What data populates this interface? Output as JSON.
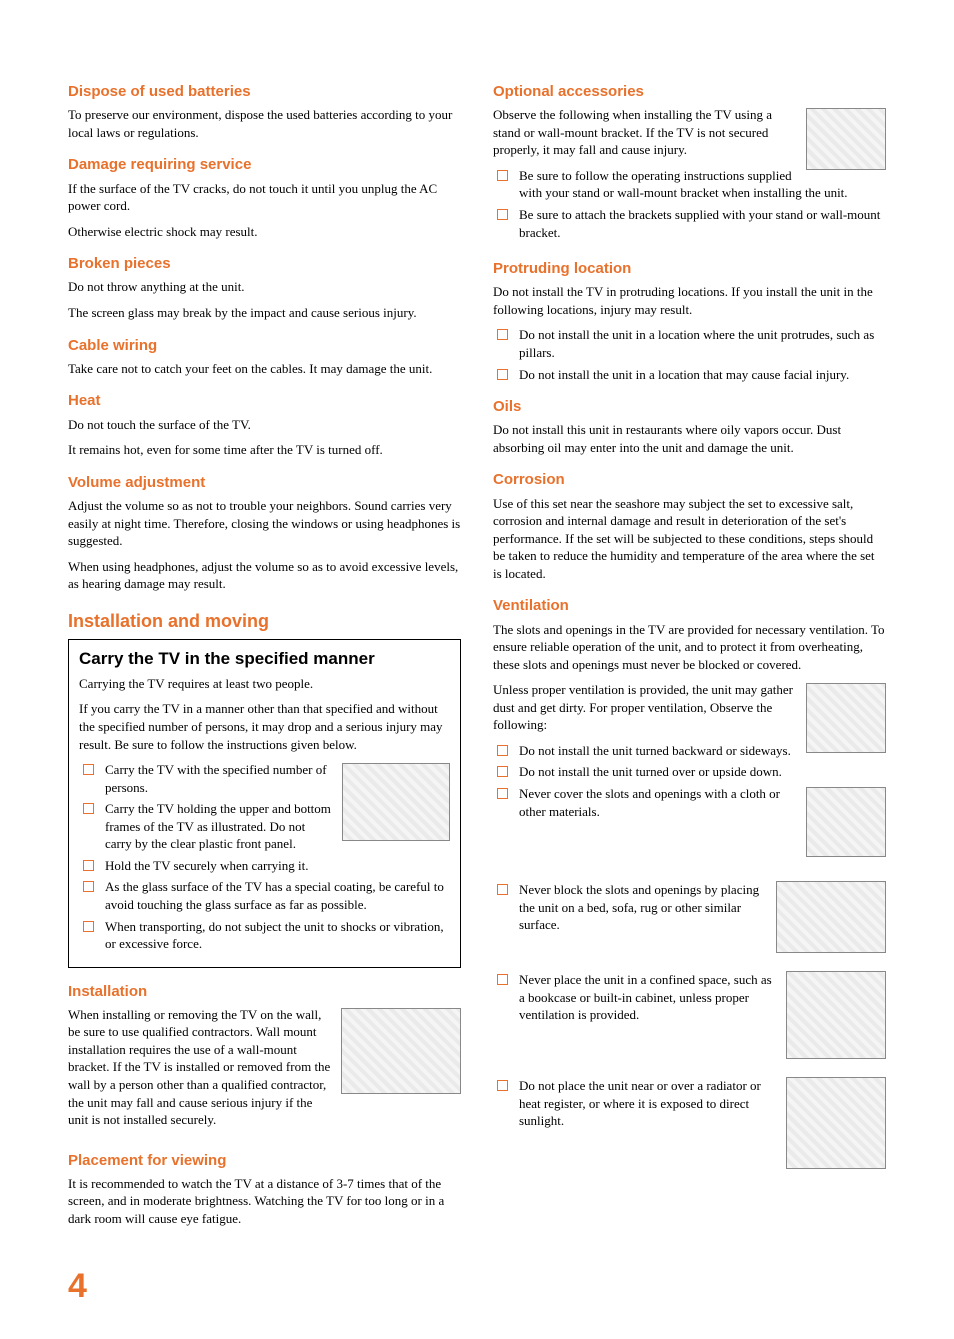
{
  "colors": {
    "orange": "#e8712c",
    "bullet_border": "#e8712c",
    "text": "#000000",
    "page_bg": "#ffffff"
  },
  "typography": {
    "heading_font": "Arial",
    "body_font": "Times New Roman",
    "orange_heading_size_pt": 15,
    "big_orange_heading_size_pt": 18,
    "body_size_pt": 13
  },
  "left": {
    "sections": [
      {
        "h": "Dispose of used batteries",
        "p": [
          "To preserve our environment, dispose the used batteries according to your local laws or regulations."
        ]
      },
      {
        "h": "Damage requiring service",
        "p": [
          "If the surface of the TV cracks, do not touch it until you unplug the AC power cord.",
          "Otherwise electric shock may result."
        ]
      },
      {
        "h": "Broken pieces",
        "p": [
          "Do not throw anything at the unit.",
          "The screen glass may break by the impact and cause serious injury."
        ]
      },
      {
        "h": "Cable wiring",
        "p": [
          "Take care not to catch your feet on the cables. It may damage the unit."
        ]
      },
      {
        "h": "Heat",
        "p": [
          "Do not touch the surface of the TV.",
          "It remains hot, even for some time after the TV is turned off."
        ]
      },
      {
        "h": "Volume adjustment",
        "p": [
          "Adjust the volume so as not to trouble your neighbors. Sound carries very easily at night time. Therefore, closing the windows or using headphones is suggested.",
          "When using headphones, adjust the volume so as to avoid excessive levels, as hearing damage may result."
        ]
      }
    ],
    "install_heading": "Installation and moving",
    "box": {
      "title": "Carry the TV in the specified manner",
      "p": [
        "Carrying the TV requires at least two people.",
        "If you carry the TV in a manner other than that specified and without the specified number of persons, it may drop and a serious injury may result. Be sure to follow the instructions given below."
      ],
      "bullets": [
        "Carry the TV with the specified number of persons.",
        "Carry the TV holding the upper and bottom frames of the TV as illustrated. Do not carry by the clear plastic front panel.",
        "Hold the TV securely when carrying it.",
        "As the glass surface of the TV has a special coating, be careful to avoid touching the glass surface as far as possible.",
        "When transporting, do not subject the unit to shocks or vibration, or excessive force."
      ],
      "img_alt": "two-people-carrying-tv",
      "img_size": [
        108,
        78
      ]
    },
    "installation": {
      "h": "Installation",
      "p": "When installing or removing the TV on the wall, be sure to use qualified contractors. Wall mount installation requires the use of a wall-mount bracket. If the TV is installed or removed from the wall by a person other than a qualified contractor, the unit may fall and cause serious injury if the unit is not installed securely.",
      "img_alt": "wall-mount-install",
      "img_size": [
        120,
        86
      ]
    },
    "placement": {
      "h": "Placement for viewing",
      "p": "It is recommended to watch the TV at a distance of 3-7 times that of the screen, and in moderate brightness. Watching the TV for too long or in a dark room will cause eye fatigue."
    }
  },
  "right": {
    "optional": {
      "h": "Optional accessories",
      "p": "Observe the following when installing the TV using a stand or wall-mount bracket. If the TV is not secured properly, it may fall and cause injury.",
      "bullets": [
        "Be sure to follow the operating instructions supplied with your stand or wall-mount bracket when installing the unit.",
        "Be sure to attach the brackets supplied with your stand or wall-mount bracket."
      ],
      "img_alt": "tv-on-stand",
      "img_size": [
        80,
        62
      ]
    },
    "protruding": {
      "h": "Protruding location",
      "p": "Do not install the TV in protruding locations. If you install the unit in the following locations, injury may result.",
      "bullets": [
        "Do not install the unit in a location where the unit protrudes, such as pillars.",
        "Do not install the unit in a location that may cause facial injury."
      ]
    },
    "oils": {
      "h": "Oils",
      "p": "Do not install this unit in restaurants where oily vapors occur. Dust absorbing oil may enter into the unit and damage the unit."
    },
    "corrosion": {
      "h": "Corrosion",
      "p": "Use of this set near the seashore may subject the set to excessive salt, corrosion and internal damage and result in deterioration of the set's performance. If the set will be subjected to these conditions, steps should be taken to reduce the humidity and temperature of the area where the set is located."
    },
    "ventilation": {
      "h": "Ventilation",
      "p": [
        "The slots and openings in the TV are provided for necessary ventilation. To ensure reliable operation of the unit, and to protect it from overheating, these slots and openings must never be blocked or covered.",
        "Unless proper ventilation is provided, the unit may gather dust and get dirty. For proper ventilation, Observe the following:"
      ],
      "group1": {
        "bullets": [
          "Do not install the unit turned backward or sideways.",
          "Do not install the unit turned over or upside down.",
          "Never cover the slots and openings with a cloth or other materials."
        ],
        "img1_alt": "tv-ventilation-arrows",
        "img1_size": [
          80,
          70
        ],
        "img2_alt": "tv-covered-cloth",
        "img2_size": [
          80,
          70
        ]
      },
      "item_bed": {
        "text": "Never block the slots and openings by placing the unit on a bed, sofa, rug or other similar surface.",
        "img_alt": "tv-on-sofa",
        "img_size": [
          110,
          72
        ]
      },
      "item_confined": {
        "text": "Never place the unit in a confined space, such as a bookcase or built-in cabinet, unless proper ventilation is provided.",
        "img_alt": "tv-in-wall-cabinet",
        "img_size": [
          100,
          88
        ]
      },
      "item_radiator": {
        "text": "Do not place the unit near or over a radiator or heat register, or where it is exposed to direct sunlight.",
        "img_alt": "tv-near-radiator",
        "img_size": [
          100,
          92
        ]
      }
    }
  },
  "page_number": "4"
}
